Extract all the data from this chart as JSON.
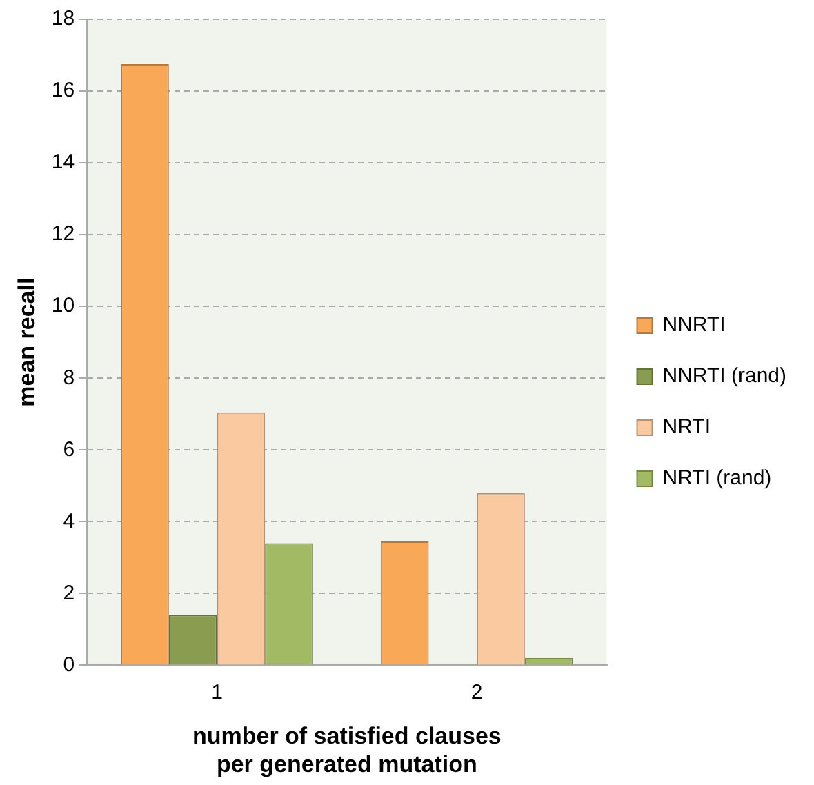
{
  "chart_data": {
    "type": "bar",
    "xlabel": "number of satisfied clauses\nper generated mutation",
    "ylabel": "mean recall",
    "categories": [
      "1",
      "2"
    ],
    "series": [
      {
        "name": "NNRTI",
        "color": "#f9a857",
        "values": [
          16.75,
          3.45
        ]
      },
      {
        "name": "NNRTI (rand)",
        "color": "#8a9c50",
        "values": [
          1.4,
          0
        ]
      },
      {
        "name": "NRTI",
        "color": "#fbc9a0",
        "values": [
          7.05,
          4.8
        ]
      },
      {
        "name": "NRTI (rand)",
        "color": "#a2ba64",
        "values": [
          3.4,
          0.2
        ]
      }
    ],
    "ylim": [
      0,
      18
    ],
    "yticks": [
      0,
      2,
      4,
      6,
      8,
      10,
      12,
      14,
      16,
      18
    ],
    "grid": "y",
    "legend": "right"
  }
}
